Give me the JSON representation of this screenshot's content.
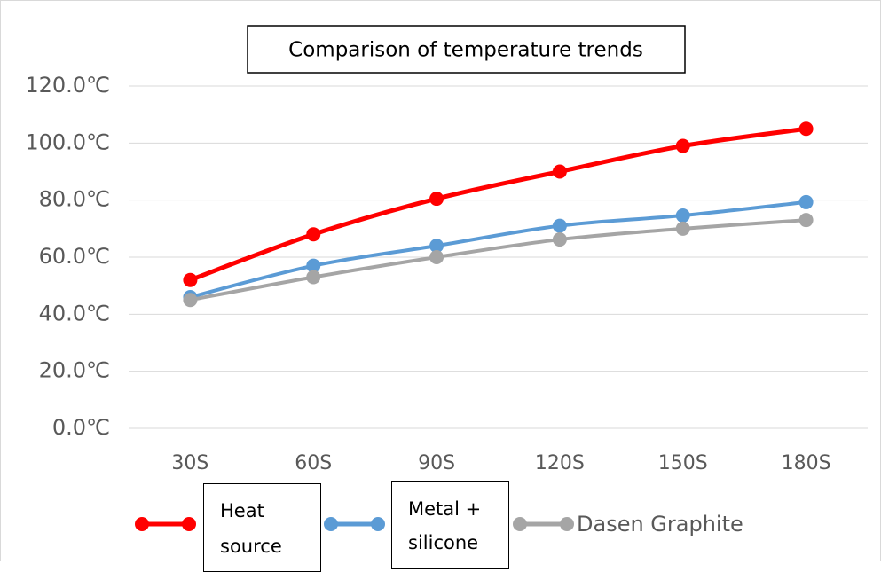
{
  "chart_data": {
    "type": "line",
    "title": "Comparison of temperature trends",
    "categories": [
      "30S",
      "60S",
      "90S",
      "120S",
      "150S",
      "180S"
    ],
    "series": [
      {
        "name": "Heat source",
        "color": "#ff0000",
        "values": [
          52,
          68,
          80.5,
          90,
          99,
          105
        ]
      },
      {
        "name": "Metal + silicone",
        "color": "#5b9bd5",
        "values": [
          46,
          57,
          64,
          71,
          74.6,
          79.3
        ]
      },
      {
        "name": "Dasen Graphite",
        "color": "#a5a5a5",
        "values": [
          45,
          53,
          60,
          66.2,
          70,
          73
        ]
      }
    ],
    "ylim": [
      0,
      120
    ],
    "yticks": [
      {
        "value": 0,
        "label": "0.0℃"
      },
      {
        "value": 20,
        "label": "20.0℃"
      },
      {
        "value": 40,
        "label": "40.0℃"
      },
      {
        "value": 60,
        "label": "60.0℃"
      },
      {
        "value": 80,
        "label": "80.0℃"
      },
      {
        "value": 100,
        "label": "100.0℃"
      },
      {
        "value": 120,
        "label": "120.0℃"
      }
    ],
    "grid": true
  }
}
